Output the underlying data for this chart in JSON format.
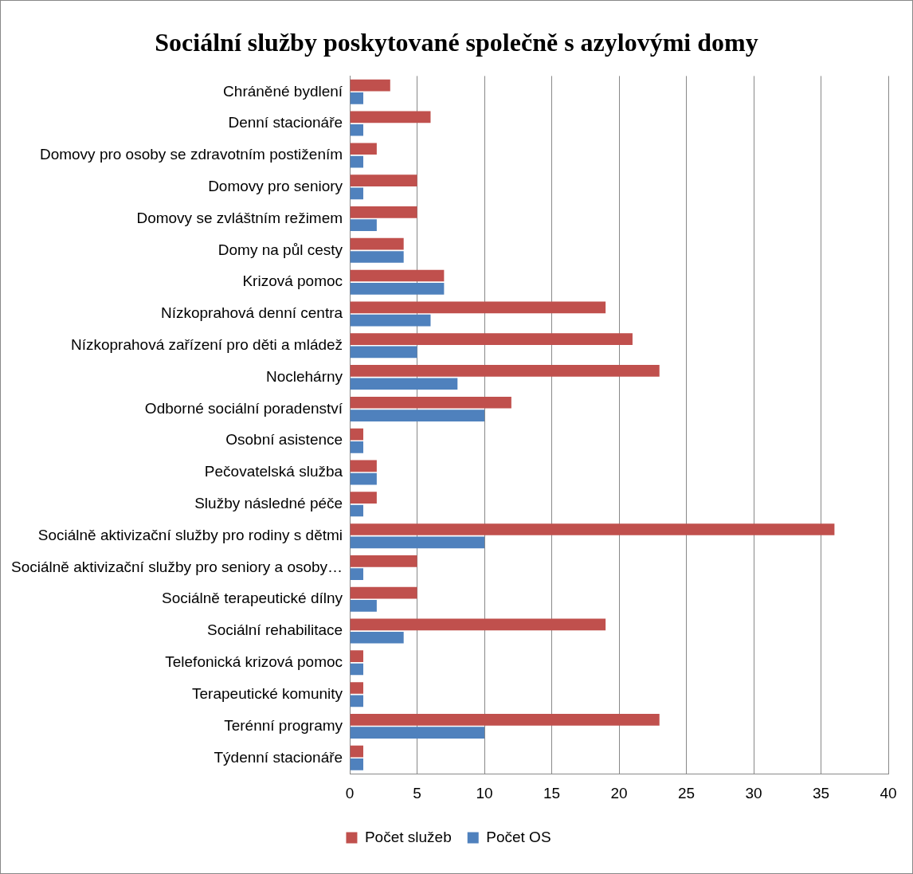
{
  "chart_data": {
    "type": "bar",
    "orientation": "horizontal",
    "title": "Sociální služby poskytované společně s azylovými domy",
    "categories": [
      "Chráněné bydlení",
      "Denní stacionáře",
      "Domovy pro osoby se zdravotním postižením",
      "Domovy pro seniory",
      "Domovy se zvláštním režimem",
      "Domy na půl cesty",
      "Krizová pomoc",
      "Nízkoprahová denní centra",
      "Nízkoprahová zařízení pro děti a mládež",
      "Noclehárny",
      "Odborné sociální poradenství",
      "Osobní asistence",
      "Pečovatelská služba",
      "Služby následné péče",
      "Sociálně aktivizační služby pro rodiny s dětmi",
      "Sociálně aktivizační služby pro seniory a osoby…",
      "Sociálně terapeutické dílny",
      "Sociální rehabilitace",
      "Telefonická krizová pomoc",
      "Terapeutické komunity",
      "Terénní programy",
      "Týdenní stacionáře"
    ],
    "series": [
      {
        "name": "Počet služeb",
        "color": "#c0504d",
        "values": [
          3,
          6,
          2,
          5,
          5,
          4,
          7,
          19,
          21,
          23,
          12,
          1,
          2,
          2,
          36,
          5,
          5,
          19,
          1,
          1,
          23,
          1
        ]
      },
      {
        "name": "Počet OS",
        "color": "#4f81bd",
        "values": [
          1,
          1,
          1,
          1,
          2,
          4,
          7,
          6,
          5,
          8,
          10,
          1,
          2,
          1,
          10,
          1,
          2,
          4,
          1,
          1,
          10,
          1
        ]
      }
    ],
    "xlim": [
      0,
      40
    ],
    "xticks": [
      0,
      5,
      10,
      15,
      20,
      25,
      30,
      35,
      40
    ],
    "grid": "x",
    "legend": "bottom"
  }
}
